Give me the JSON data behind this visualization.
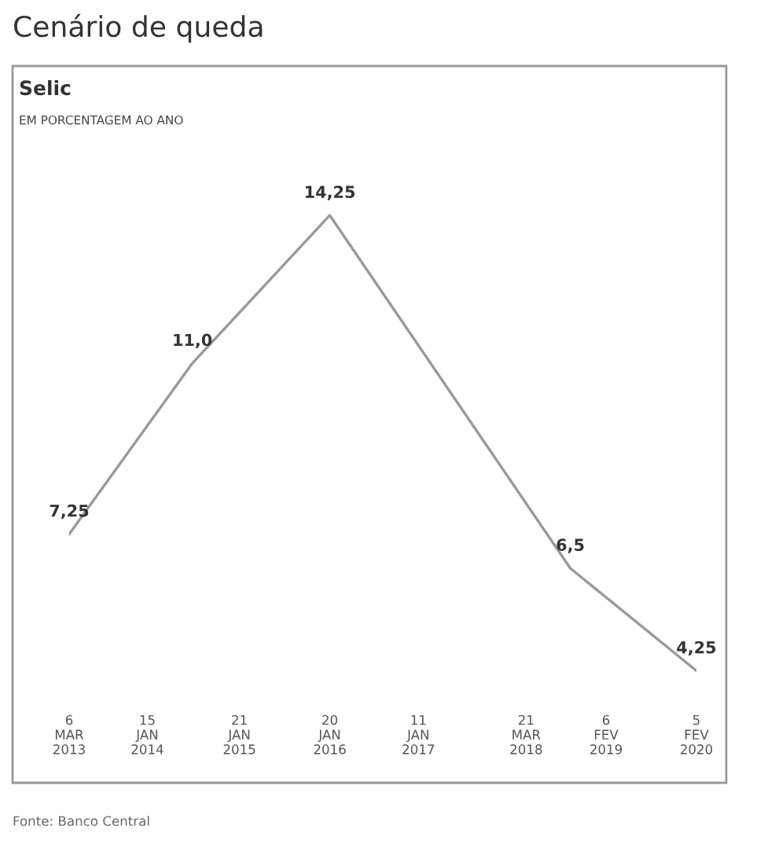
{
  "chart_data": {
    "type": "line",
    "title": "Cenário de queda",
    "subtitle": "Selic",
    "annotations": [
      "EM PORCENTAGEM AO ANO",
      "Fonte: Banco Central"
    ],
    "x": [
      "2013-03-06",
      "2014-07-15",
      "2016-01-20",
      "2018-09-15",
      "2020-02-05"
    ],
    "series": [
      {
        "color": "#999999",
        "values": [
          7.25,
          11.0,
          14.25,
          6.5,
          4.25
        ],
        "value_labels": [
          "7,25",
          "11,0",
          "14,25",
          "6,5",
          "4,25"
        ]
      }
    ],
    "xlim": [
      "2013-03-06",
      "2020-02-05"
    ],
    "xticks": [
      {
        "value": "2013-03-06",
        "label": "6\nMAR\n2013"
      },
      {
        "value": "2014-01-15",
        "label": "15\nJAN\n2014"
      },
      {
        "value": "2015-01-21",
        "label": "21\nJAN\n2015"
      },
      {
        "value": "2016-01-20",
        "label": "20\nJAN\n2016"
      },
      {
        "value": "2017-01-11",
        "label": "11\nJAN\n2017"
      },
      {
        "value": "2018-03-21",
        "label": "21\nMAR\n2018"
      },
      {
        "value": "2019-02-06",
        "label": "6\nFEV\n2019"
      },
      {
        "value": "2020-02-05",
        "label": "5\nFEV\n2020"
      }
    ],
    "tick_labels": "x",
    "grid": false,
    "legend": false,
    "marker": "none",
    "line_style": "solid"
  }
}
